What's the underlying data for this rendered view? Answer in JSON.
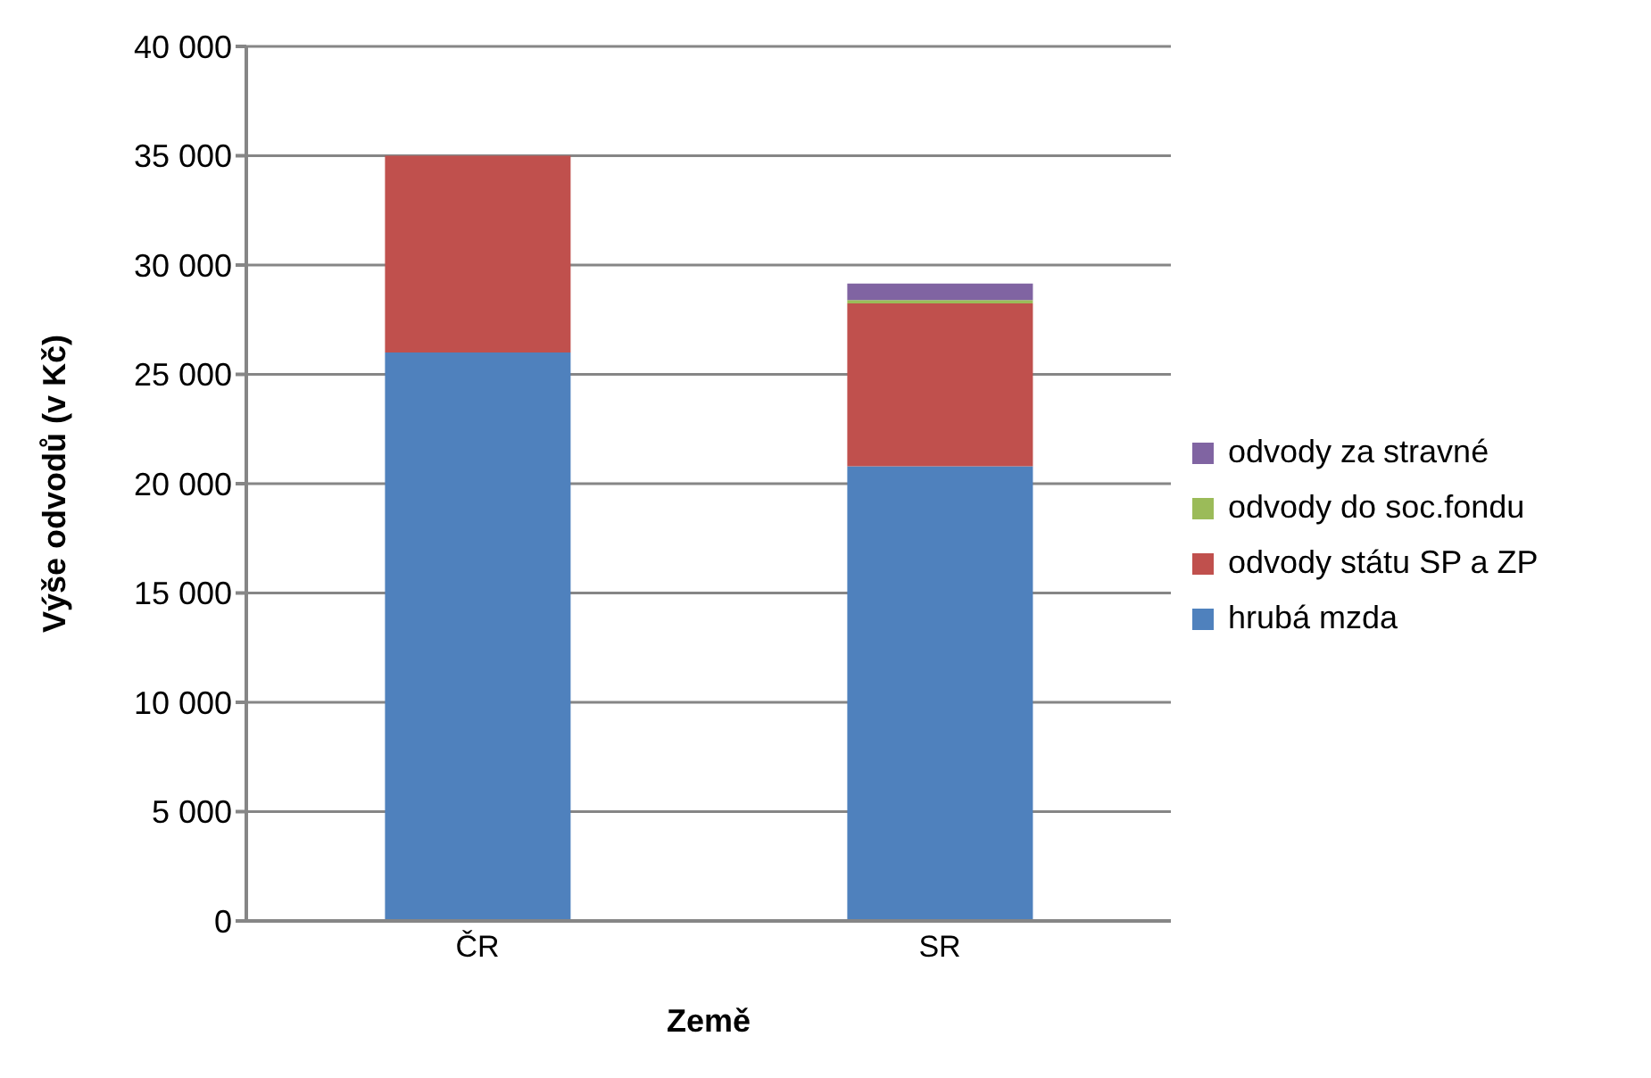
{
  "chart_data": {
    "type": "bar",
    "stacked": true,
    "xlabel": "Země",
    "ylabel": "Výše odvodů (v Kč)",
    "categories": [
      "ČR",
      "SR"
    ],
    "series": [
      {
        "name": "hrubá mzda",
        "color": "#4f81bd",
        "values": [
          26000,
          20800
        ]
      },
      {
        "name": "odvody státu SP a ZP",
        "color": "#c0504d",
        "values": [
          9000,
          7450
        ]
      },
      {
        "name": "odvody do soc.fondu",
        "color": "#9bbb59",
        "values": [
          0,
          150
        ]
      },
      {
        "name": "odvody za stravné",
        "color": "#8064a2",
        "values": [
          0,
          750
        ]
      }
    ],
    "ylim": [
      0,
      40000
    ],
    "yticks": [
      {
        "value": 0,
        "label": "0"
      },
      {
        "value": 5000,
        "label": "5 000"
      },
      {
        "value": 10000,
        "label": "10 000"
      },
      {
        "value": 15000,
        "label": "15 000"
      },
      {
        "value": 20000,
        "label": "20 000"
      },
      {
        "value": 25000,
        "label": "25 000"
      },
      {
        "value": 30000,
        "label": "30 000"
      },
      {
        "value": 35000,
        "label": "35 000"
      },
      {
        "value": 40000,
        "label": "40 000"
      }
    ],
    "grid": "y",
    "legend": "right"
  }
}
